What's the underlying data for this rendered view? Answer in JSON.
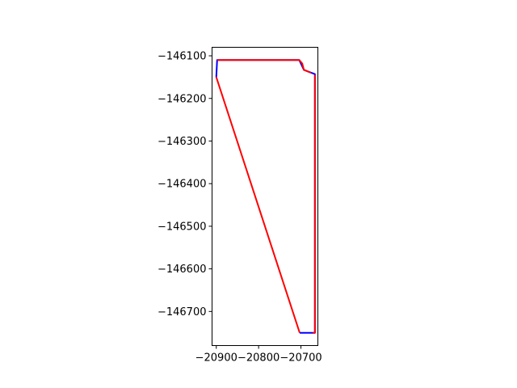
{
  "chart_data": {
    "type": "line",
    "title": "",
    "xlabel": "",
    "ylabel": "",
    "xlim": [
      -20910,
      -20660
    ],
    "ylim": [
      -146780,
      -146080
    ],
    "grid": false,
    "legend": "none",
    "x_ticks": [
      {
        "value": -20900,
        "label": "−20900"
      },
      {
        "value": -20800,
        "label": "−20800"
      },
      {
        "value": -20700,
        "label": "−20700"
      }
    ],
    "y_ticks": [
      {
        "value": -146100,
        "label": "−146100"
      },
      {
        "value": -146200,
        "label": "−146200"
      },
      {
        "value": -146300,
        "label": "−146300"
      },
      {
        "value": -146400,
        "label": "−146400"
      },
      {
        "value": -146500,
        "label": "−146500"
      },
      {
        "value": -146600,
        "label": "−146600"
      },
      {
        "value": -146700,
        "label": "−146700"
      }
    ],
    "series": [
      {
        "color": "#0000ff",
        "points": [
          [
            -20900,
            -146150
          ],
          [
            -20898,
            -146110
          ],
          [
            -20704,
            -146110
          ],
          [
            -20693,
            -146133
          ],
          [
            -20667,
            -146143
          ],
          [
            -20667,
            -146750
          ],
          [
            -20703,
            -146750
          ]
        ]
      },
      {
        "color": "#ff0000",
        "points": [
          [
            -20703,
            -146750
          ],
          [
            -20900,
            -146150
          ]
        ]
      },
      {
        "color": "#ff0000",
        "points": [
          [
            -20898,
            -146110
          ],
          [
            -20704,
            -146110
          ],
          [
            -20697,
            -146118
          ],
          [
            -20693,
            -146133
          ],
          [
            -20676,
            -146140
          ]
        ]
      },
      {
        "color": "#ff0000",
        "points": [
          [
            -20667,
            -146145
          ],
          [
            -20667,
            -146750
          ],
          [
            -20672,
            -146750
          ]
        ]
      }
    ]
  }
}
